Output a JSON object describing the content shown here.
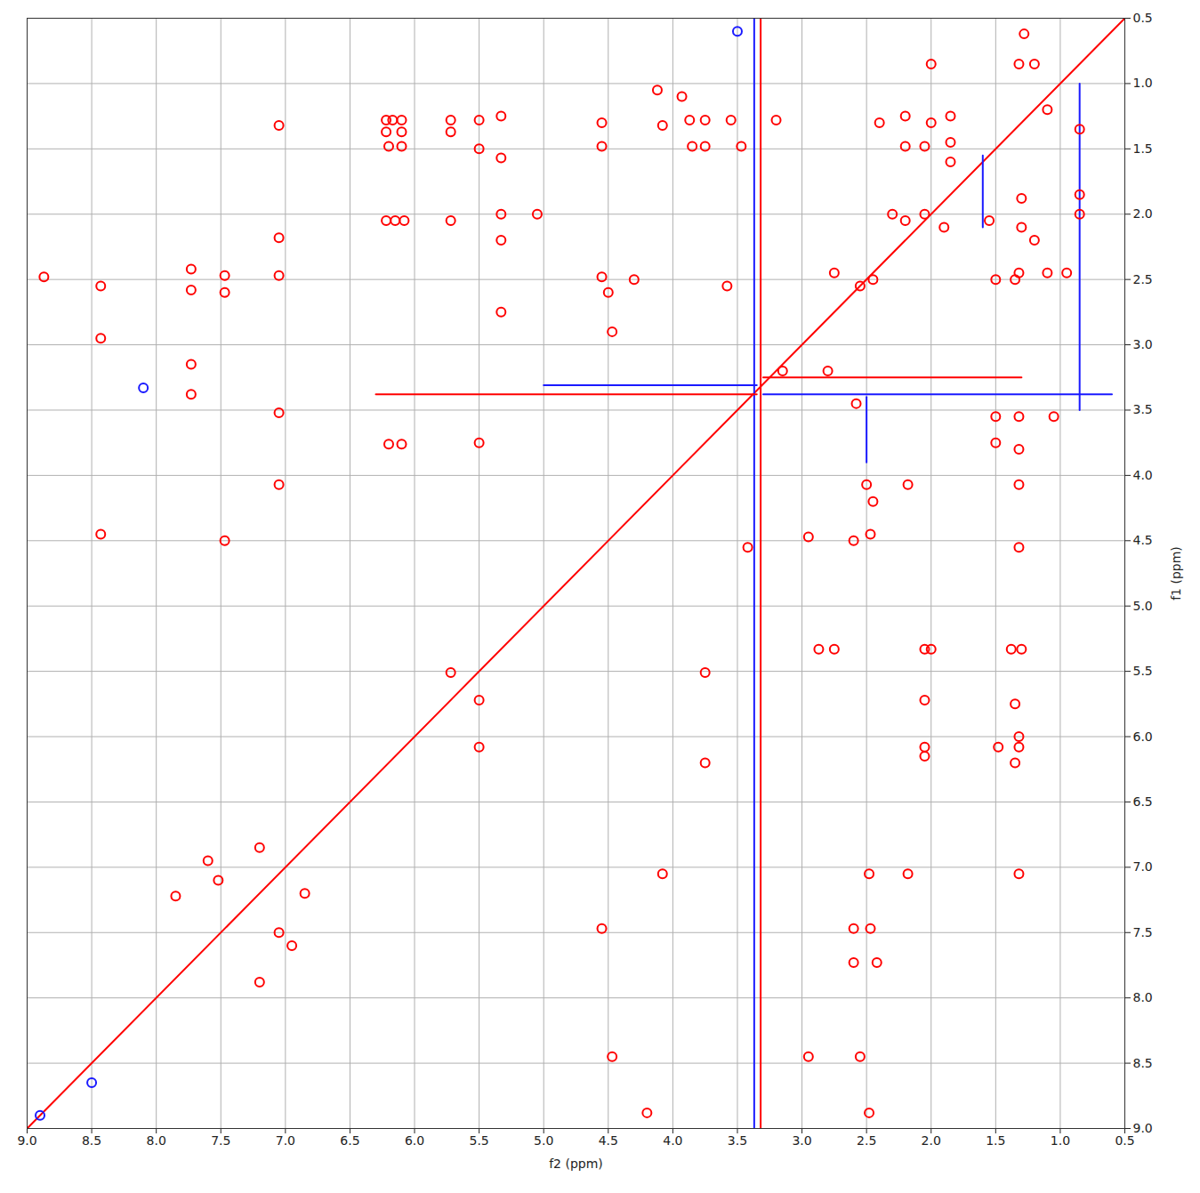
{
  "chart_data": {
    "type": "scatter",
    "xlabel": "f2 (ppm)",
    "ylabel": "f1 (ppm)",
    "xlim": [
      9.0,
      0.5
    ],
    "ylim": [
      9.0,
      0.5
    ],
    "xticks": [
      {
        "value": 9,
        "label": "9.0"
      },
      8.5,
      {
        "value": 8,
        "label": "8.0"
      },
      7.5,
      {
        "value": 7,
        "label": "7.0"
      },
      6.5,
      {
        "value": 6,
        "label": "6.0"
      },
      5.5,
      {
        "value": 5,
        "label": "5.0"
      },
      4.5,
      {
        "value": 4,
        "label": "4.0"
      },
      3.5,
      {
        "value": 3,
        "label": "3.0"
      },
      2.5,
      {
        "value": 2,
        "label": "2.0"
      },
      1.5,
      {
        "value": 1,
        "label": "1.0"
      },
      0.5
    ],
    "yticks": [
      0.5,
      {
        "value": 1,
        "label": "1.0"
      },
      1.5,
      {
        "value": 2,
        "label": "2.0"
      },
      2.5,
      {
        "value": 3,
        "label": "3.0"
      },
      3.5,
      {
        "value": 4,
        "label": "4.0"
      },
      4.5,
      {
        "value": 5,
        "label": "5.0"
      },
      5.5,
      {
        "value": 6,
        "label": "6.0"
      },
      6.5,
      {
        "value": 7,
        "label": "7.0"
      },
      7.5,
      {
        "value": 8,
        "label": "8.0"
      },
      8.5,
      {
        "value": 9,
        "label": "9.0"
      }
    ],
    "grid": true,
    "series": [
      {
        "type": "line",
        "color": "#ff0000",
        "points": [
          [
            9.0,
            9.0
          ],
          [
            0.5,
            0.5
          ]
        ]
      },
      {
        "type": "line",
        "color": "#ff0000",
        "points": [
          [
            3.32,
            0.5
          ],
          [
            3.32,
            9.0
          ]
        ]
      },
      {
        "type": "line",
        "color": "#1a1aff",
        "points": [
          [
            3.37,
            0.5
          ],
          [
            3.37,
            9.0
          ]
        ]
      },
      {
        "type": "line",
        "color": "#ff0000",
        "points": [
          [
            6.3,
            3.38
          ],
          [
            3.35,
            3.38
          ]
        ]
      },
      {
        "type": "line",
        "color": "#ff0000",
        "points": [
          [
            3.3,
            3.25
          ],
          [
            1.3,
            3.25
          ]
        ]
      },
      {
        "type": "line",
        "color": "#1a1aff",
        "points": [
          [
            5.0,
            3.31
          ],
          [
            3.35,
            3.31
          ]
        ]
      },
      {
        "type": "line",
        "color": "#1a1aff",
        "points": [
          [
            3.3,
            3.38
          ],
          [
            0.6,
            3.38
          ]
        ]
      },
      {
        "type": "line",
        "color": "#1a1aff",
        "points": [
          [
            2.5,
            3.4
          ],
          [
            2.5,
            3.9
          ]
        ]
      },
      {
        "type": "line",
        "color": "#1a1aff",
        "points": [
          [
            1.6,
            1.55
          ],
          [
            1.6,
            2.1
          ]
        ]
      },
      {
        "type": "line",
        "color": "#1a1aff",
        "points": [
          [
            0.85,
            1.0
          ],
          [
            0.85,
            3.5
          ]
        ]
      },
      {
        "type": "scatter",
        "color": "#1a1aff",
        "points": [
          [
            8.5,
            8.65
          ],
          [
            8.9,
            8.9
          ],
          [
            8.1,
            3.33
          ],
          [
            3.5,
            0.6
          ]
        ]
      },
      {
        "type": "scatter",
        "color": "#ff0000",
        "points": [
          [
            8.87,
            2.48
          ],
          [
            8.43,
            2.55
          ],
          [
            8.43,
            2.95
          ],
          [
            8.43,
            4.45
          ],
          [
            7.73,
            2.42
          ],
          [
            7.73,
            2.58
          ],
          [
            7.73,
            3.15
          ],
          [
            7.73,
            3.38
          ],
          [
            7.47,
            2.47
          ],
          [
            7.47,
            2.6
          ],
          [
            7.47,
            4.5
          ],
          [
            7.05,
            1.32
          ],
          [
            7.05,
            2.18
          ],
          [
            7.05,
            2.47
          ],
          [
            7.05,
            3.52
          ],
          [
            7.05,
            4.07
          ],
          [
            6.22,
            1.28
          ],
          [
            6.17,
            1.28
          ],
          [
            6.1,
            1.28
          ],
          [
            6.22,
            1.37
          ],
          [
            6.1,
            1.37
          ],
          [
            6.2,
            1.48
          ],
          [
            6.1,
            1.48
          ],
          [
            6.22,
            2.05
          ],
          [
            6.15,
            2.05
          ],
          [
            6.08,
            2.05
          ],
          [
            6.2,
            3.76
          ],
          [
            6.1,
            3.76
          ],
          [
            5.72,
            1.28
          ],
          [
            5.72,
            1.37
          ],
          [
            5.72,
            2.05
          ],
          [
            5.72,
            5.51
          ],
          [
            5.5,
            1.28
          ],
          [
            5.5,
            1.5
          ],
          [
            5.5,
            3.75
          ],
          [
            5.5,
            5.72
          ],
          [
            5.5,
            6.08
          ],
          [
            5.33,
            1.25
          ],
          [
            5.33,
            1.57
          ],
          [
            5.33,
            2.0
          ],
          [
            5.33,
            2.2
          ],
          [
            5.33,
            2.75
          ],
          [
            5.05,
            2.0
          ],
          [
            4.55,
            1.3
          ],
          [
            4.55,
            1.48
          ],
          [
            4.55,
            2.48
          ],
          [
            4.5,
            2.6
          ],
          [
            4.47,
            2.9
          ],
          [
            4.3,
            2.5
          ],
          [
            4.12,
            1.05
          ],
          [
            4.08,
            1.32
          ],
          [
            3.93,
            1.1
          ],
          [
            3.87,
            1.28
          ],
          [
            3.85,
            1.48
          ],
          [
            3.75,
            1.28
          ],
          [
            3.75,
            1.48
          ],
          [
            3.55,
            1.28
          ],
          [
            3.47,
            1.48
          ],
          [
            3.58,
            2.55
          ],
          [
            3.42,
            4.55
          ],
          [
            3.75,
            5.51
          ],
          [
            3.75,
            6.2
          ],
          [
            4.55,
            7.47
          ],
          [
            4.08,
            7.05
          ],
          [
            4.47,
            8.45
          ],
          [
            4.2,
            8.88
          ],
          [
            2.95,
            8.45
          ],
          [
            2.55,
            8.45
          ],
          [
            2.48,
            8.88
          ],
          [
            2.6,
            7.47
          ],
          [
            2.47,
            7.47
          ],
          [
            2.6,
            7.73
          ],
          [
            2.42,
            7.73
          ],
          [
            2.48,
            7.05
          ],
          [
            2.18,
            7.05
          ],
          [
            1.32,
            7.05
          ],
          [
            2.75,
            5.33
          ],
          [
            2.87,
            5.33
          ],
          [
            2.05,
            5.33
          ],
          [
            2.0,
            5.33
          ],
          [
            1.3,
            5.33
          ],
          [
            2.05,
            5.72
          ],
          [
            2.05,
            6.08
          ],
          [
            2.05,
            6.15
          ],
          [
            1.32,
            6.08
          ],
          [
            1.35,
            6.2
          ],
          [
            1.35,
            5.75
          ],
          [
            1.48,
            6.08
          ],
          [
            2.95,
            4.47
          ],
          [
            2.6,
            4.5
          ],
          [
            2.47,
            4.45
          ],
          [
            2.45,
            4.2
          ],
          [
            2.5,
            4.07
          ],
          [
            2.18,
            4.07
          ],
          [
            1.32,
            4.07
          ],
          [
            1.32,
            4.55
          ],
          [
            2.58,
            3.45
          ],
          [
            1.5,
            3.55
          ],
          [
            1.32,
            3.55
          ],
          [
            1.05,
            3.55
          ],
          [
            1.5,
            3.75
          ],
          [
            1.32,
            3.8
          ],
          [
            2.45,
            2.5
          ],
          [
            2.2,
            2.05
          ],
          [
            2.05,
            2.0
          ],
          [
            1.9,
            2.1
          ],
          [
            1.55,
            2.05
          ],
          [
            1.3,
            1.88
          ],
          [
            1.3,
            2.1
          ],
          [
            1.2,
            2.2
          ],
          [
            1.35,
            2.5
          ],
          [
            1.5,
            2.5
          ],
          [
            2.4,
            1.3
          ],
          [
            2.2,
            1.25
          ],
          [
            2.0,
            1.3
          ],
          [
            1.85,
            1.25
          ],
          [
            1.85,
            1.45
          ],
          [
            2.2,
            1.48
          ],
          [
            2.05,
            1.48
          ],
          [
            2.0,
            0.85
          ],
          [
            1.32,
            0.85
          ],
          [
            1.28,
            0.62
          ],
          [
            1.2,
            0.85
          ],
          [
            0.85,
            1.35
          ],
          [
            0.85,
            1.85
          ],
          [
            0.85,
            2.0
          ],
          [
            1.1,
            1.2
          ],
          [
            1.32,
            2.45
          ],
          [
            1.1,
            2.45
          ],
          [
            0.95,
            2.45
          ],
          [
            2.55,
            2.55
          ],
          [
            2.75,
            2.45
          ],
          [
            3.2,
            1.28
          ],
          [
            3.15,
            3.2
          ],
          [
            2.8,
            3.2
          ],
          [
            2.3,
            2.0
          ],
          [
            1.85,
            1.6
          ],
          [
            7.85,
            7.22
          ],
          [
            7.2,
            7.88
          ],
          [
            7.6,
            6.95
          ],
          [
            7.2,
            6.85
          ],
          [
            6.85,
            7.2
          ],
          [
            6.95,
            7.6
          ],
          [
            7.52,
            7.1
          ],
          [
            7.05,
            7.5
          ],
          [
            1.38,
            5.33
          ],
          [
            1.32,
            6.0
          ]
        ]
      }
    ]
  }
}
